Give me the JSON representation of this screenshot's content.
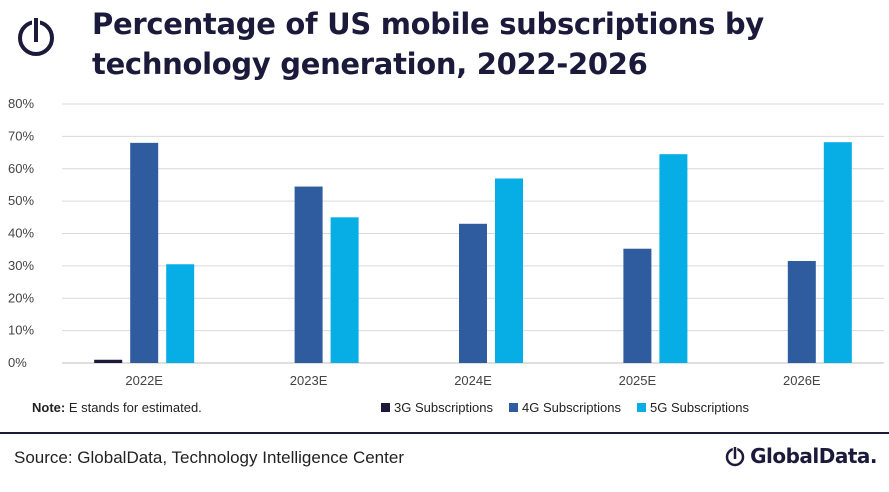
{
  "header": {
    "title": "Percentage of US mobile subscriptions by technology generation, 2022-2026"
  },
  "footer": {
    "note_label": "Note:",
    "note_text": " E stands for estimated.",
    "source": "Source: GlobalData, Technology Intelligence Center",
    "brand": "GlobalData."
  },
  "colors": {
    "3G": "#1b1a3a",
    "4G": "#2f5c9e",
    "5G": "#07aee6",
    "grid": "#d9d9d9",
    "title": "#1b1a3a"
  },
  "icons": [
    "globaldata-logo-icon"
  ],
  "chart_data": {
    "type": "bar",
    "categories": [
      "2022E",
      "2023E",
      "2024E",
      "2025E",
      "2026E"
    ],
    "series": [
      {
        "name": "3G Subscriptions",
        "values": [
          1,
          0,
          0,
          0,
          0
        ]
      },
      {
        "name": "4G Subscriptions",
        "values": [
          68,
          54.5,
          43,
          35.3,
          31.5
        ]
      },
      {
        "name": "5G Subscriptions",
        "values": [
          30.5,
          45,
          57,
          64.5,
          68.2
        ]
      }
    ],
    "yticks": [
      "0%",
      "10%",
      "20%",
      "30%",
      "40%",
      "50%",
      "60%",
      "70%",
      "80%"
    ],
    "ylim": [
      0,
      80
    ],
    "grid": true,
    "legend_position": "bottom-right"
  }
}
